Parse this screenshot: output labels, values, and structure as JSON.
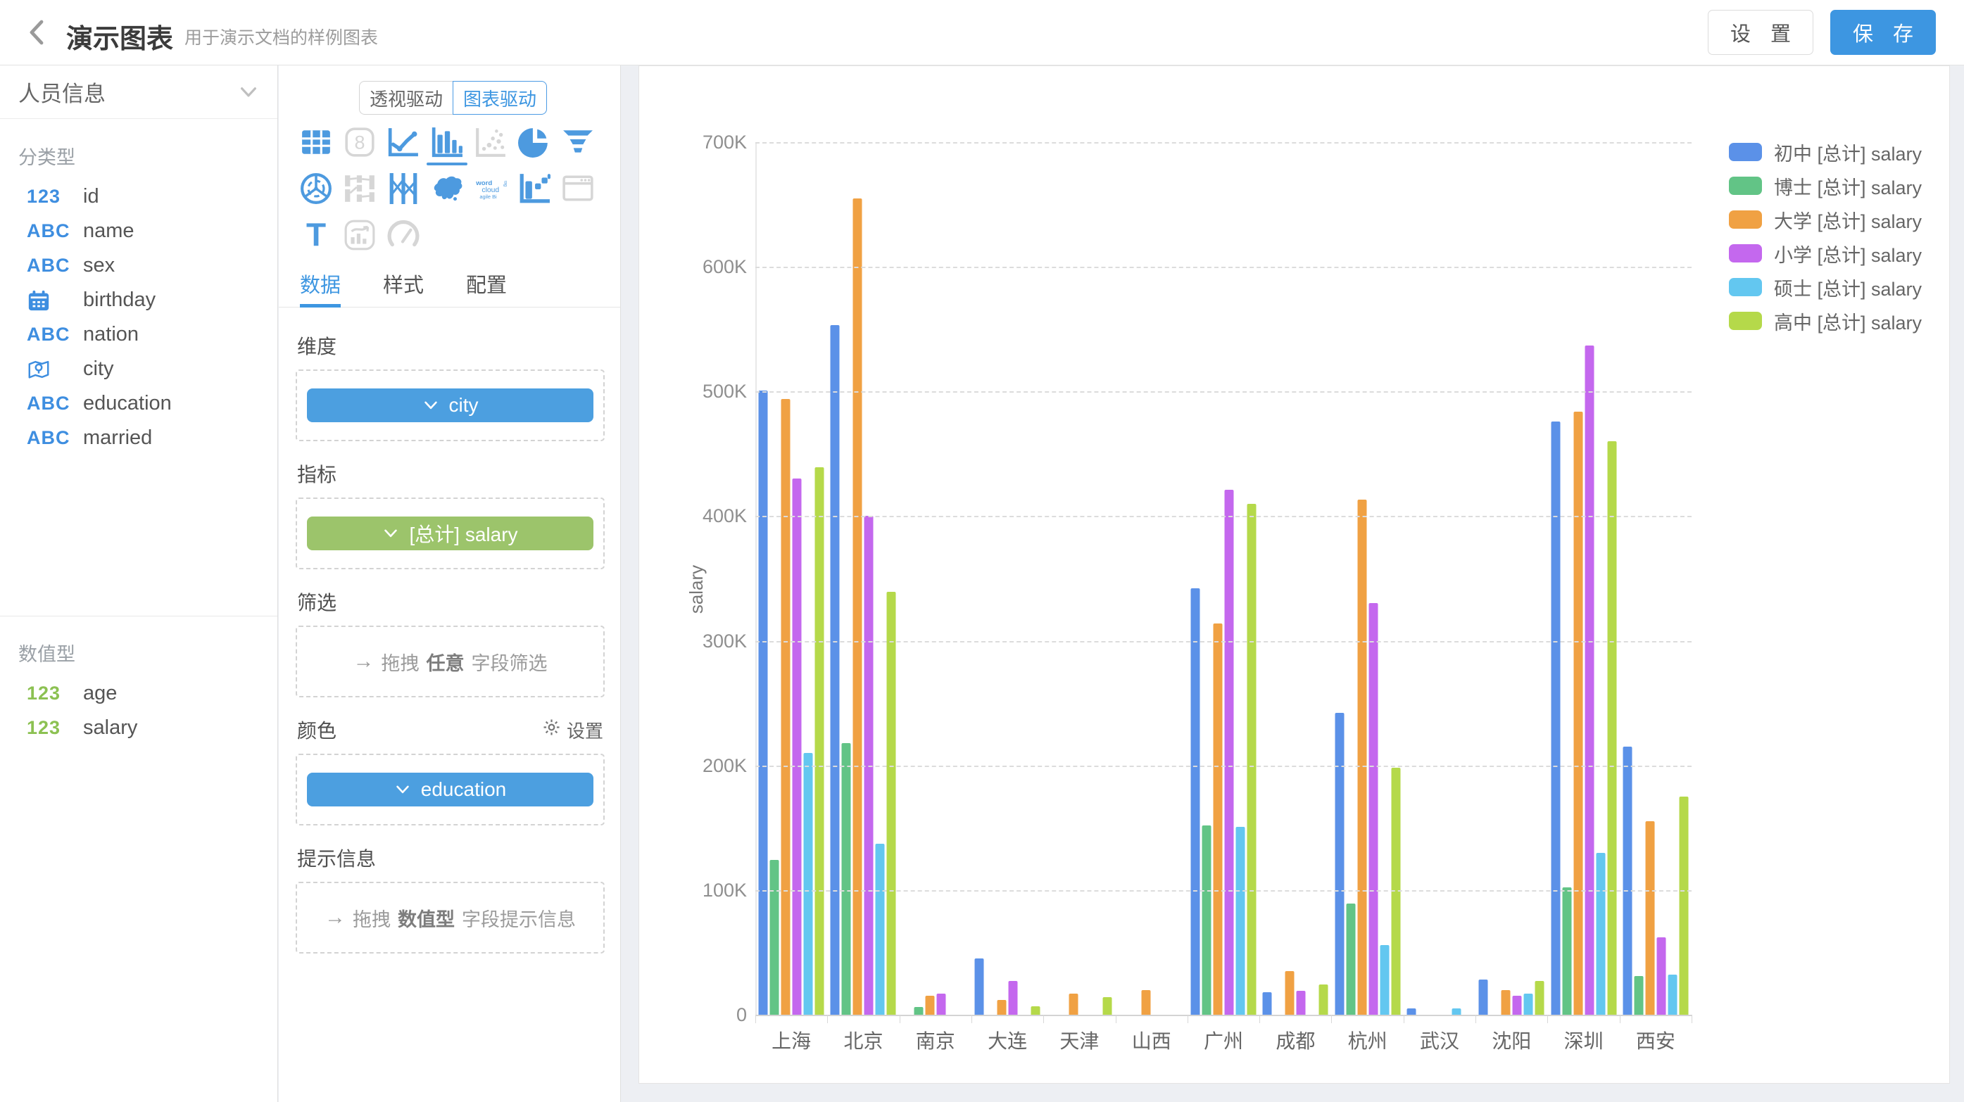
{
  "header": {
    "title": "演示图表",
    "subtitle": "用于演示文档的样例图表",
    "settings_label": "设 置",
    "save_label": "保 存"
  },
  "sidebar": {
    "dataset_name": "人员信息",
    "type_glyphs": {
      "number": "123",
      "string": "ABC"
    },
    "sections": [
      {
        "label": "分类型",
        "fields": [
          {
            "icon": "number",
            "color": "blue",
            "name": "id"
          },
          {
            "icon": "string",
            "color": "blue",
            "name": "name"
          },
          {
            "icon": "string",
            "color": "blue",
            "name": "sex"
          },
          {
            "icon": "calendar",
            "color": "blue",
            "name": "birthday"
          },
          {
            "icon": "string",
            "color": "blue",
            "name": "nation"
          },
          {
            "icon": "map-pin",
            "color": "blue",
            "name": "city"
          },
          {
            "icon": "string",
            "color": "blue",
            "name": "education"
          },
          {
            "icon": "string",
            "color": "blue",
            "name": "married"
          }
        ]
      },
      {
        "label": "数值型",
        "fields": [
          {
            "icon": "number",
            "color": "green",
            "name": "age"
          },
          {
            "icon": "number",
            "color": "green",
            "name": "salary"
          }
        ]
      }
    ]
  },
  "builder": {
    "mode_tabs": [
      {
        "label": "透视驱动",
        "active": false
      },
      {
        "label": "图表驱动",
        "active": true
      }
    ],
    "icon_texts": {
      "number_card": "8",
      "text_glyph": "T",
      "word_cloud": [
        "word",
        "tag",
        "cloud",
        "agile Bi"
      ]
    },
    "chart_types": [
      {
        "icon": "table",
        "state": "enabled"
      },
      {
        "icon": "number-card",
        "state": "disabled"
      },
      {
        "icon": "line-chart",
        "state": "enabled"
      },
      {
        "icon": "bar-chart",
        "state": "selected"
      },
      {
        "icon": "scatter-plot",
        "state": "disabled"
      },
      {
        "icon": "pie-chart",
        "state": "enabled"
      },
      {
        "icon": "funnel",
        "state": "enabled"
      },
      {
        "icon": "radar",
        "state": "enabled"
      },
      {
        "icon": "sankey",
        "state": "disabled"
      },
      {
        "icon": "parallel",
        "state": "enabled"
      },
      {
        "icon": "china-map",
        "state": "enabled"
      },
      {
        "icon": "word-cloud",
        "state": "enabled"
      },
      {
        "icon": "scatter-bar",
        "state": "enabled"
      },
      {
        "icon": "iframe",
        "state": "disabled"
      },
      {
        "icon": "text",
        "state": "enabled"
      },
      {
        "icon": "combo-chart",
        "state": "disabled"
      },
      {
        "icon": "gauge",
        "state": "disabled"
      }
    ],
    "tabs": [
      {
        "label": "数据",
        "active": true
      },
      {
        "label": "样式",
        "active": false
      },
      {
        "label": "配置",
        "active": false
      }
    ],
    "sections": {
      "dimension": {
        "label": "维度",
        "pill_text": "city",
        "pill_color": "#4c9fe0"
      },
      "metric": {
        "label": "指标",
        "pill_text": "[总计] salary",
        "pill_color": "#9cc46b"
      },
      "filter": {
        "label": "筛选",
        "ph_arrow": "→",
        "ph1": "拖拽",
        "ph2": "任意",
        "ph3": "字段筛选"
      },
      "color": {
        "label": "颜色",
        "action": "设置",
        "pill_text": "education",
        "pill_color": "#4c9fe0"
      },
      "tooltip": {
        "label": "提示信息",
        "ph_arrow": "→",
        "ph1": "拖拽",
        "ph2": "数值型",
        "ph3": "字段提示信息"
      }
    }
  },
  "chart_data": {
    "type": "bar",
    "title": "",
    "xlabel": "",
    "ylabel": "salary",
    "ylim": [
      0,
      700000
    ],
    "yticks": [
      "0",
      "100K",
      "200K",
      "300K",
      "400K",
      "500K",
      "600K",
      "700K"
    ],
    "grid": "dashed-horizontal",
    "legend_position": "right",
    "categories": [
      "上海",
      "北京",
      "南京",
      "大连",
      "天津",
      "山西",
      "广州",
      "成都",
      "杭州",
      "武汉",
      "沈阳",
      "深圳",
      "西安"
    ],
    "series": [
      {
        "name": "初中 [总计] salary",
        "color": "#5b91e8",
        "values": [
          501000,
          553000,
          0,
          45000,
          0,
          0,
          342000,
          18000,
          242000,
          5000,
          28000,
          476000,
          215000
        ]
      },
      {
        "name": "博士 [总计] salary",
        "color": "#62c486",
        "values": [
          124000,
          218000,
          6000,
          0,
          0,
          0,
          152000,
          0,
          89000,
          0,
          0,
          102000,
          31000
        ]
      },
      {
        "name": "大学 [总计] salary",
        "color": "#f0a143",
        "values": [
          494000,
          655000,
          15000,
          12000,
          17000,
          20000,
          314000,
          35000,
          413000,
          0,
          20000,
          484000,
          155000
        ]
      },
      {
        "name": "小学 [总计] salary",
        "color": "#c468ee",
        "values": [
          430000,
          400000,
          17000,
          27000,
          0,
          0,
          421000,
          19000,
          330000,
          0,
          15000,
          537000,
          62000
        ]
      },
      {
        "name": "硕士 [总计] salary",
        "color": "#63c7f0",
        "values": [
          210000,
          137000,
          0,
          0,
          0,
          0,
          151000,
          0,
          56000,
          5000,
          17000,
          130000,
          32000
        ]
      },
      {
        "name": "高中 [总计] salary",
        "color": "#b5d94a",
        "values": [
          439000,
          339000,
          0,
          7000,
          14000,
          0,
          410000,
          24000,
          198000,
          0,
          27000,
          460000,
          175000
        ]
      }
    ]
  }
}
